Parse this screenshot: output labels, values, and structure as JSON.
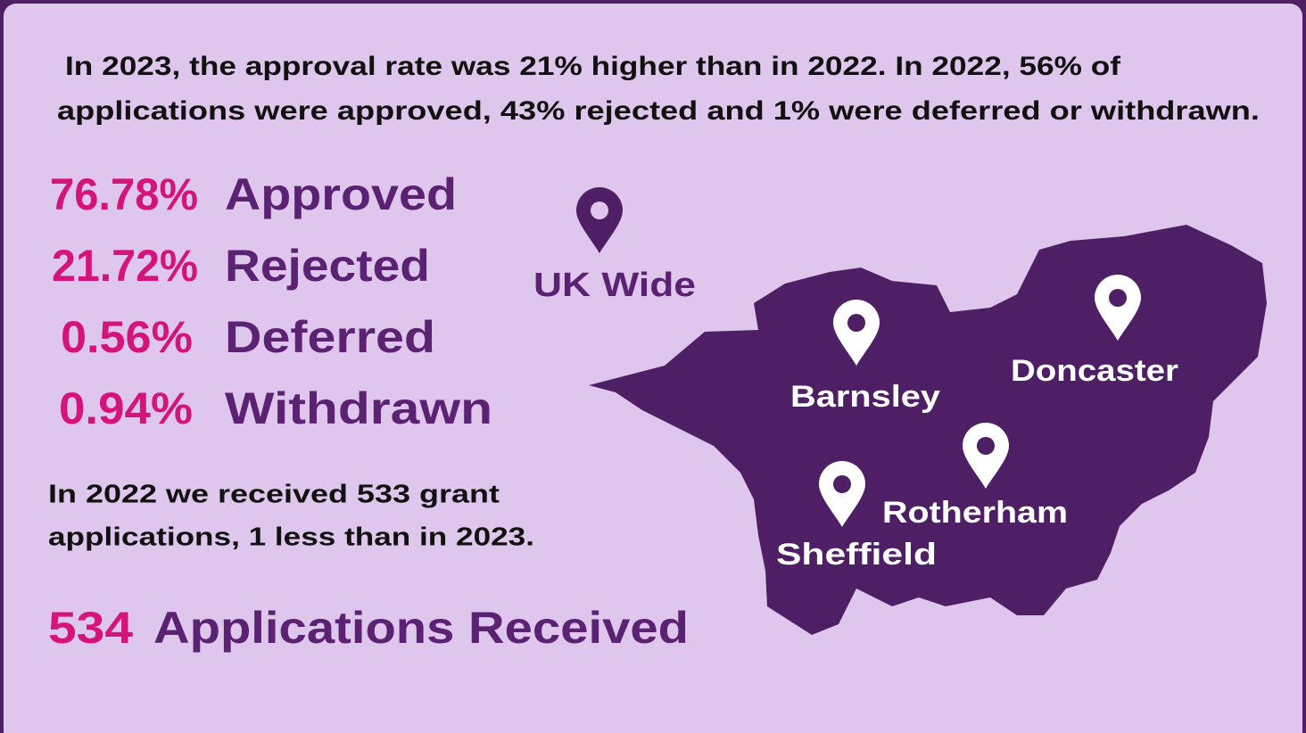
{
  "intro": [
    "In 2023, the approval rate was 21% higher than in 2022. In 2022, 56% of",
    "applications were approved, 43% rejected and 1% were deferred or withdrawn."
  ],
  "stats": [
    {
      "value": "76.78%",
      "label": "Approved"
    },
    {
      "value": "21.72%",
      "label": "Rejected"
    },
    {
      "value": "0.56%",
      "label": "Deferred"
    },
    {
      "value": "0.94%",
      "label": "Withdrawn"
    }
  ],
  "note": [
    "In 2022 we received 533 grant",
    "applications, 1 less than in 2023."
  ],
  "total": {
    "value": "534",
    "label": "Applications Received"
  },
  "map": {
    "uk_label": "UK Wide",
    "locations": [
      "Barnsley",
      "Doncaster",
      "Rotherham",
      "Sheffield"
    ]
  }
}
